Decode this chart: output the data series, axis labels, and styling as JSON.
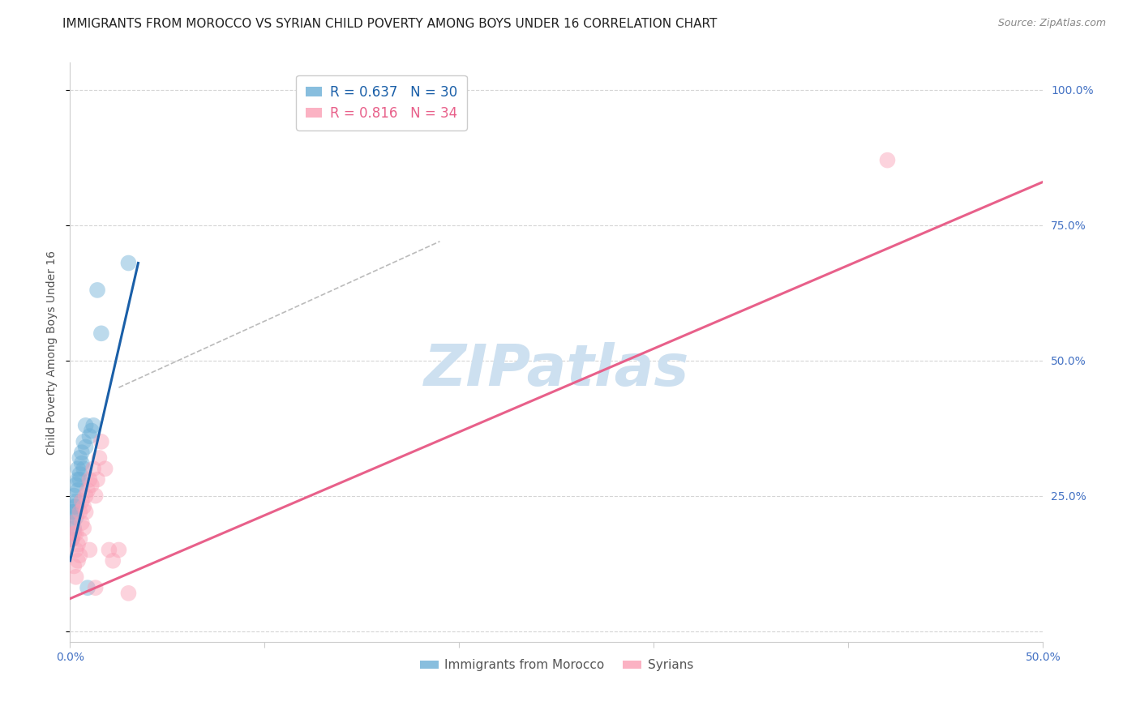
{
  "title": "IMMIGRANTS FROM MOROCCO VS SYRIAN CHILD POVERTY AMONG BOYS UNDER 16 CORRELATION CHART",
  "source": "Source: ZipAtlas.com",
  "ylabel": "Child Poverty Among Boys Under 16",
  "xlim": [
    0,
    0.5
  ],
  "ylim": [
    -0.02,
    1.05
  ],
  "xticks": [
    0.0,
    0.1,
    0.2,
    0.3,
    0.4,
    0.5
  ],
  "xticklabels": [
    "0.0%",
    "",
    "",
    "",
    "",
    "50.0%"
  ],
  "yticks_right": [
    0.0,
    0.25,
    0.5,
    0.75,
    1.0
  ],
  "yticklabels_right": [
    "",
    "25.0%",
    "50.0%",
    "75.0%",
    "100.0%"
  ],
  "watermark": "ZIPatlas",
  "legend_blue_r": "R = 0.637",
  "legend_blue_n": "N = 30",
  "legend_pink_r": "R = 0.816",
  "legend_pink_n": "N = 34",
  "color_blue": "#6baed6",
  "color_pink": "#fa9fb5",
  "color_blue_line": "#1a5fa8",
  "color_pink_line": "#e8608a",
  "color_dashed": "#bbbbbb",
  "blue_scatter_x": [
    0.001,
    0.001,
    0.001,
    0.002,
    0.002,
    0.002,
    0.002,
    0.003,
    0.003,
    0.003,
    0.003,
    0.004,
    0.004,
    0.004,
    0.005,
    0.005,
    0.005,
    0.006,
    0.006,
    0.007,
    0.007,
    0.008,
    0.008,
    0.009,
    0.01,
    0.011,
    0.012,
    0.014,
    0.016,
    0.03
  ],
  "blue_scatter_y": [
    0.17,
    0.2,
    0.22,
    0.19,
    0.22,
    0.23,
    0.25,
    0.21,
    0.24,
    0.27,
    0.23,
    0.28,
    0.3,
    0.26,
    0.29,
    0.32,
    0.28,
    0.33,
    0.31,
    0.3,
    0.35,
    0.34,
    0.38,
    0.08,
    0.36,
    0.37,
    0.38,
    0.63,
    0.55,
    0.68
  ],
  "pink_scatter_x": [
    0.001,
    0.001,
    0.002,
    0.002,
    0.003,
    0.003,
    0.003,
    0.004,
    0.004,
    0.005,
    0.005,
    0.005,
    0.006,
    0.006,
    0.007,
    0.007,
    0.008,
    0.008,
    0.009,
    0.01,
    0.01,
    0.011,
    0.012,
    0.013,
    0.013,
    0.014,
    0.015,
    0.016,
    0.018,
    0.02,
    0.022,
    0.025,
    0.03,
    0.42
  ],
  "pink_scatter_y": [
    0.17,
    0.2,
    0.12,
    0.18,
    0.1,
    0.15,
    0.18,
    0.13,
    0.16,
    0.14,
    0.17,
    0.22,
    0.2,
    0.24,
    0.19,
    0.23,
    0.22,
    0.25,
    0.26,
    0.15,
    0.28,
    0.27,
    0.3,
    0.25,
    0.08,
    0.28,
    0.32,
    0.35,
    0.3,
    0.15,
    0.13,
    0.15,
    0.07,
    0.87
  ],
  "blue_line_x": [
    0.0,
    0.035
  ],
  "blue_line_y": [
    0.13,
    0.68
  ],
  "pink_line_x": [
    0.0,
    0.5
  ],
  "pink_line_y": [
    0.06,
    0.83
  ],
  "dashed_line_x": [
    0.025,
    0.19
  ],
  "dashed_line_y": [
    0.45,
    0.72
  ],
  "background_color": "#ffffff",
  "grid_color": "#d5d5d5",
  "scatter_size": 200,
  "scatter_alpha": 0.45,
  "title_fontsize": 11,
  "axis_label_fontsize": 10,
  "tick_fontsize": 10,
  "legend_fontsize": 12,
  "watermark_fontsize": 52,
  "watermark_color": "#cde0f0",
  "source_fontsize": 9
}
